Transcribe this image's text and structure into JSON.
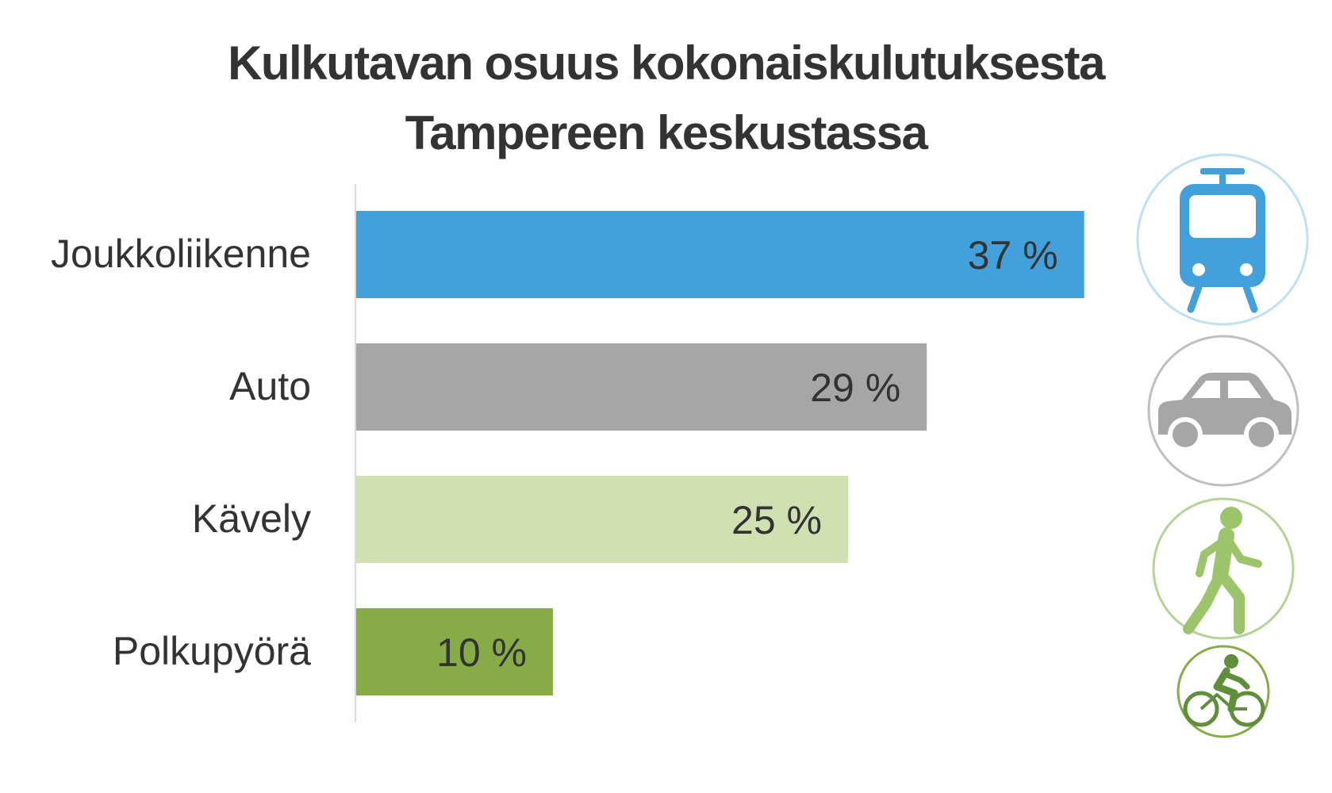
{
  "title": {
    "line1": "Kulkutavan osuus kokonaiskulutuksesta",
    "line2": "Tampereen keskustassa"
  },
  "chart_data": {
    "type": "bar",
    "orientation": "horizontal",
    "categories": [
      "Joukkoliikenne",
      "Auto",
      "Kävely",
      "Polkupyörä"
    ],
    "values": [
      37,
      29,
      25,
      10
    ],
    "value_labels": [
      "37 %",
      "29 %",
      "25 %",
      "10 %"
    ],
    "unit": "%",
    "colors": [
      "#42a1db",
      "#a6a6a6",
      "#d0e0b0",
      "#87ab47"
    ],
    "xlim": [
      0,
      40
    ],
    "grid": false,
    "legend": "none",
    "icons": [
      "tram-icon",
      "car-icon",
      "pedestrian-icon",
      "bicycle-icon"
    ],
    "icon_colors": [
      "#42a1db",
      "#a6a6a6",
      "#9cc46b",
      "#5f8f3a"
    ]
  }
}
